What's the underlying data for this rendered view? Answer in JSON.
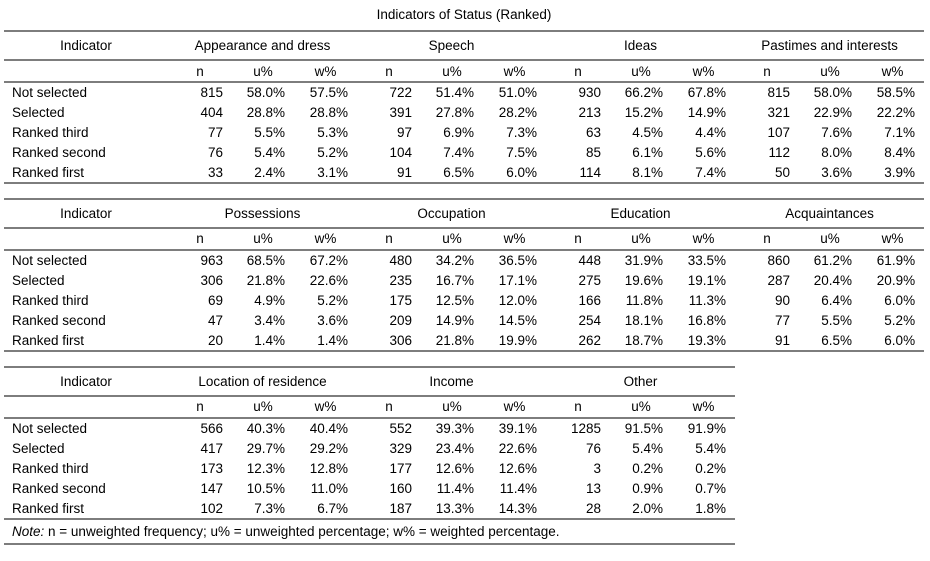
{
  "title": "Indicators of Status (Ranked)",
  "indicator_header": "Indicator",
  "sub_headers": [
    "n",
    "u%",
    "w%"
  ],
  "row_labels": [
    "Not selected",
    "Selected",
    "Ranked third",
    "Ranked second",
    "Ranked first"
  ],
  "note": {
    "label": "Note:",
    "text": "n = unweighted frequency; u% = unweighted percentage; w% = weighted percentage."
  },
  "tables": [
    {
      "groups": [
        {
          "name": "Appearance and dress",
          "n": [
            815,
            404,
            77,
            76,
            33
          ],
          "u": [
            "58.0%",
            "28.8%",
            "5.5%",
            "5.4%",
            "2.4%"
          ],
          "w": [
            "57.5%",
            "28.8%",
            "5.3%",
            "5.2%",
            "3.1%"
          ]
        },
        {
          "name": "Speech",
          "n": [
            722,
            391,
            97,
            104,
            91
          ],
          "u": [
            "51.4%",
            "27.8%",
            "6.9%",
            "7.4%",
            "6.5%"
          ],
          "w": [
            "51.0%",
            "28.2%",
            "7.3%",
            "7.5%",
            "6.0%"
          ]
        },
        {
          "name": "Ideas",
          "n": [
            930,
            213,
            63,
            85,
            114
          ],
          "u": [
            "66.2%",
            "15.2%",
            "4.5%",
            "6.1%",
            "8.1%"
          ],
          "w": [
            "67.8%",
            "14.9%",
            "4.4%",
            "5.6%",
            "7.4%"
          ]
        },
        {
          "name": "Pastimes and interests",
          "n": [
            815,
            321,
            107,
            112,
            50
          ],
          "u": [
            "58.0%",
            "22.9%",
            "7.6%",
            "8.0%",
            "3.6%"
          ],
          "w": [
            "58.5%",
            "22.2%",
            "7.1%",
            "8.4%",
            "3.9%"
          ]
        }
      ]
    },
    {
      "groups": [
        {
          "name": "Possessions",
          "n": [
            963,
            306,
            69,
            47,
            20
          ],
          "u": [
            "68.5%",
            "21.8%",
            "4.9%",
            "3.4%",
            "1.4%"
          ],
          "w": [
            "67.2%",
            "22.6%",
            "5.2%",
            "3.6%",
            "1.4%"
          ]
        },
        {
          "name": "Occupation",
          "n": [
            480,
            235,
            175,
            209,
            306
          ],
          "u": [
            "34.2%",
            "16.7%",
            "12.5%",
            "14.9%",
            "21.8%"
          ],
          "w": [
            "36.5%",
            "17.1%",
            "12.0%",
            "14.5%",
            "19.9%"
          ]
        },
        {
          "name": "Education",
          "n": [
            448,
            275,
            166,
            254,
            262
          ],
          "u": [
            "31.9%",
            "19.6%",
            "11.8%",
            "18.1%",
            "18.7%"
          ],
          "w": [
            "33.5%",
            "19.1%",
            "11.3%",
            "16.8%",
            "19.3%"
          ]
        },
        {
          "name": "Acquaintances",
          "n": [
            860,
            287,
            90,
            77,
            91
          ],
          "u": [
            "61.2%",
            "20.4%",
            "6.4%",
            "5.5%",
            "6.5%"
          ],
          "w": [
            "61.9%",
            "20.9%",
            "6.0%",
            "5.2%",
            "6.0%"
          ]
        }
      ]
    },
    {
      "groups": [
        {
          "name": "Location of residence",
          "n": [
            566,
            417,
            173,
            147,
            102
          ],
          "u": [
            "40.3%",
            "29.7%",
            "12.3%",
            "10.5%",
            "7.3%"
          ],
          "w": [
            "40.4%",
            "29.2%",
            "12.8%",
            "11.0%",
            "6.7%"
          ]
        },
        {
          "name": "Income",
          "n": [
            552,
            329,
            177,
            160,
            187
          ],
          "u": [
            "39.3%",
            "23.4%",
            "12.6%",
            "11.4%",
            "13.3%"
          ],
          "w": [
            "39.1%",
            "22.6%",
            "12.6%",
            "11.4%",
            "14.3%"
          ]
        },
        {
          "name": "Other",
          "n": [
            1285,
            76,
            3,
            13,
            28
          ],
          "u": [
            "91.5%",
            "5.4%",
            "0.2%",
            "0.9%",
            "2.0%"
          ],
          "w": [
            "91.9%",
            "5.4%",
            "0.2%",
            "0.7%",
            "1.8%"
          ]
        }
      ],
      "has_note": true
    }
  ]
}
